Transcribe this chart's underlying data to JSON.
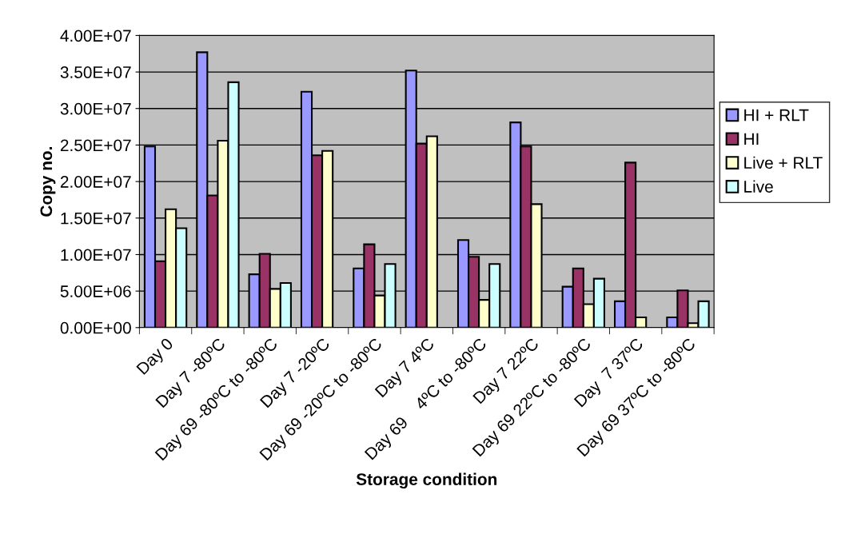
{
  "chart_data": {
    "type": "bar",
    "xlabel": "Storage condition",
    "ylabel": "Copy no.",
    "categories": [
      "Day 0",
      "Day 7 -80ºC",
      "Day 69 -80ºC to -80ºC",
      "Day 7 -20ºC",
      "Day 69 -20ºC to -80ºC",
      "Day 7 4ºC",
      "Day 69    4ºC to -80ºC",
      "Day 7 22ºC",
      "Day 69 22ºC to -80ºC",
      "Day  7 37ºC",
      "Day 69 37ºC to -80ºC"
    ],
    "series": [
      {
        "name": "HI + RLT",
        "color": "#9999ff",
        "values": [
          24800000,
          37700000,
          7300000,
          32300000,
          8100000,
          35200000,
          12000000,
          28100000,
          5600000,
          3600000,
          1400000
        ]
      },
      {
        "name": "HI",
        "color": "#993366",
        "values": [
          9100000,
          18100000,
          10100000,
          23600000,
          11400000,
          25200000,
          9700000,
          24800000,
          8100000,
          22600000,
          5100000
        ]
      },
      {
        "name": "Live + RLT",
        "color": "#ffffcc",
        "values": [
          16200000,
          25600000,
          5300000,
          24200000,
          4400000,
          26200000,
          3800000,
          16900000,
          3200000,
          1400000,
          600000
        ]
      },
      {
        "name": "Live",
        "color": "#ccffff",
        "values": [
          13600000,
          33600000,
          6100000,
          null,
          8700000,
          null,
          8700000,
          null,
          6700000,
          null,
          3600000
        ]
      }
    ],
    "ylim": [
      0,
      40000000
    ],
    "yticks": [
      {
        "value": 0,
        "label": "0.00E+00"
      },
      {
        "value": 5000000,
        "label": "5.00E+06"
      },
      {
        "value": 10000000,
        "label": "1.00E+07"
      },
      {
        "value": 15000000,
        "label": "1.50E+07"
      },
      {
        "value": 20000000,
        "label": "2.00E+07"
      },
      {
        "value": 25000000,
        "label": "2.50E+07"
      },
      {
        "value": 30000000,
        "label": "3.00E+07"
      },
      {
        "value": 35000000,
        "label": "3.50E+07"
      },
      {
        "value": 40000000,
        "label": "4.00E+07"
      }
    ],
    "grid": "y",
    "legend": "right"
  }
}
